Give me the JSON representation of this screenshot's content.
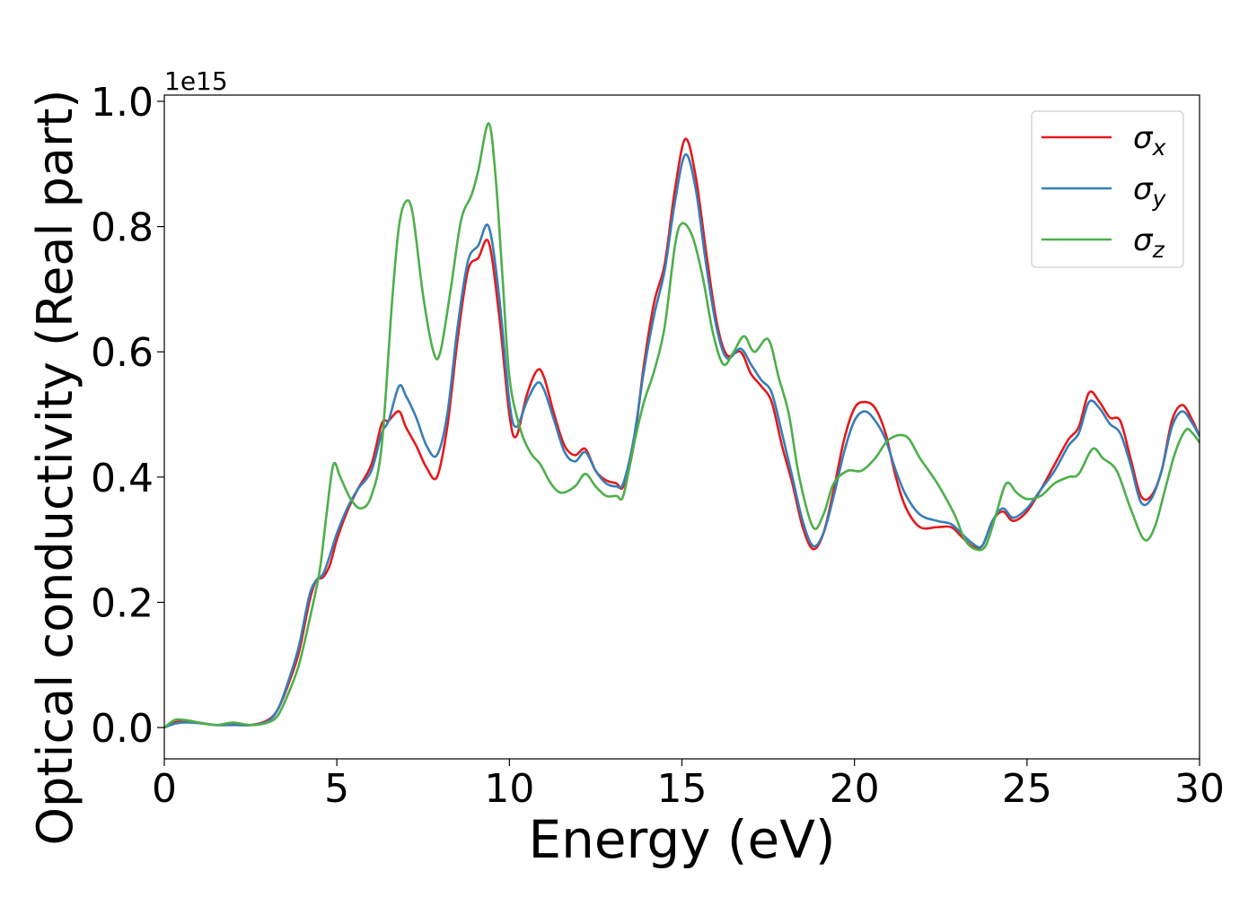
{
  "chart_data": {
    "type": "line",
    "title": "",
    "xlabel": "Energy (eV)",
    "ylabel": "Optical conductivity (Real part)",
    "offset_text": "1e15",
    "xlim": [
      0,
      30
    ],
    "ylim": [
      -0.05,
      1.01
    ],
    "xticks": [
      0,
      5,
      10,
      15,
      20,
      25,
      30
    ],
    "xtick_labels": [
      "0",
      "5",
      "10",
      "15",
      "20",
      "25",
      "30"
    ],
    "yticks": [
      0.0,
      0.2,
      0.4,
      0.6,
      0.8,
      1.0
    ],
    "ytick_labels": [
      "0.0",
      "0.2",
      "0.4",
      "0.6",
      "0.8",
      "1.0"
    ],
    "grid": false,
    "legend_position": "top-right",
    "series": [
      {
        "name": "σx",
        "legend_base": "σ",
        "legend_sub": "x",
        "color": "#e41a1c",
        "points": [
          [
            0,
            0.0
          ],
          [
            0.3,
            0.008
          ],
          [
            0.6,
            0.01
          ],
          [
            1.0,
            0.008
          ],
          [
            1.5,
            0.004
          ],
          [
            2.0,
            0.006
          ],
          [
            2.5,
            0.004
          ],
          [
            3.0,
            0.012
          ],
          [
            3.3,
            0.03
          ],
          [
            3.6,
            0.07
          ],
          [
            3.9,
            0.12
          ],
          [
            4.2,
            0.2
          ],
          [
            4.4,
            0.235
          ],
          [
            4.6,
            0.24
          ],
          [
            4.8,
            0.26
          ],
          [
            5.0,
            0.3
          ],
          [
            5.3,
            0.345
          ],
          [
            5.6,
            0.38
          ],
          [
            6.0,
            0.42
          ],
          [
            6.3,
            0.485
          ],
          [
            6.5,
            0.49
          ],
          [
            6.8,
            0.505
          ],
          [
            7.0,
            0.48
          ],
          [
            7.3,
            0.45
          ],
          [
            7.6,
            0.415
          ],
          [
            7.9,
            0.4
          ],
          [
            8.2,
            0.48
          ],
          [
            8.5,
            0.62
          ],
          [
            8.8,
            0.73
          ],
          [
            9.1,
            0.75
          ],
          [
            9.4,
            0.775
          ],
          [
            9.7,
            0.66
          ],
          [
            10.0,
            0.5
          ],
          [
            10.2,
            0.465
          ],
          [
            10.5,
            0.53
          ],
          [
            10.8,
            0.57
          ],
          [
            11.0,
            0.56
          ],
          [
            11.3,
            0.5
          ],
          [
            11.6,
            0.45
          ],
          [
            11.9,
            0.435
          ],
          [
            12.2,
            0.445
          ],
          [
            12.5,
            0.41
          ],
          [
            12.8,
            0.395
          ],
          [
            13.1,
            0.39
          ],
          [
            13.3,
            0.385
          ],
          [
            13.6,
            0.45
          ],
          [
            13.9,
            0.58
          ],
          [
            14.2,
            0.68
          ],
          [
            14.5,
            0.74
          ],
          [
            14.8,
            0.86
          ],
          [
            15.1,
            0.94
          ],
          [
            15.4,
            0.88
          ],
          [
            15.7,
            0.76
          ],
          [
            16.0,
            0.65
          ],
          [
            16.3,
            0.595
          ],
          [
            16.7,
            0.6
          ],
          [
            17.0,
            0.565
          ],
          [
            17.3,
            0.545
          ],
          [
            17.6,
            0.52
          ],
          [
            17.9,
            0.45
          ],
          [
            18.2,
            0.39
          ],
          [
            18.5,
            0.32
          ],
          [
            18.8,
            0.285
          ],
          [
            19.1,
            0.31
          ],
          [
            19.4,
            0.38
          ],
          [
            19.7,
            0.46
          ],
          [
            20.0,
            0.51
          ],
          [
            20.3,
            0.52
          ],
          [
            20.6,
            0.51
          ],
          [
            20.9,
            0.47
          ],
          [
            21.2,
            0.4
          ],
          [
            21.5,
            0.35
          ],
          [
            21.9,
            0.32
          ],
          [
            22.4,
            0.32
          ],
          [
            22.8,
            0.32
          ],
          [
            23.1,
            0.305
          ],
          [
            23.4,
            0.29
          ],
          [
            23.7,
            0.29
          ],
          [
            24.0,
            0.33
          ],
          [
            24.3,
            0.345
          ],
          [
            24.6,
            0.33
          ],
          [
            25.0,
            0.345
          ],
          [
            25.4,
            0.38
          ],
          [
            25.8,
            0.42
          ],
          [
            26.2,
            0.46
          ],
          [
            26.5,
            0.48
          ],
          [
            26.8,
            0.535
          ],
          [
            27.1,
            0.52
          ],
          [
            27.4,
            0.495
          ],
          [
            27.7,
            0.49
          ],
          [
            28.0,
            0.43
          ],
          [
            28.3,
            0.37
          ],
          [
            28.6,
            0.37
          ],
          [
            28.9,
            0.41
          ],
          [
            29.2,
            0.49
          ],
          [
            29.5,
            0.515
          ],
          [
            29.8,
            0.49
          ],
          [
            30.0,
            0.465
          ]
        ]
      },
      {
        "name": "σy",
        "legend_base": "σ",
        "legend_sub": "y",
        "color": "#377eb8",
        "points": [
          [
            0,
            0.0
          ],
          [
            0.3,
            0.006
          ],
          [
            0.6,
            0.008
          ],
          [
            1.0,
            0.007
          ],
          [
            1.5,
            0.004
          ],
          [
            2.0,
            0.004
          ],
          [
            2.5,
            0.004
          ],
          [
            3.0,
            0.01
          ],
          [
            3.3,
            0.03
          ],
          [
            3.6,
            0.075
          ],
          [
            3.9,
            0.13
          ],
          [
            4.2,
            0.21
          ],
          [
            4.4,
            0.235
          ],
          [
            4.6,
            0.245
          ],
          [
            4.8,
            0.275
          ],
          [
            5.0,
            0.31
          ],
          [
            5.3,
            0.35
          ],
          [
            5.6,
            0.38
          ],
          [
            6.0,
            0.41
          ],
          [
            6.3,
            0.47
          ],
          [
            6.5,
            0.49
          ],
          [
            6.8,
            0.545
          ],
          [
            7.0,
            0.53
          ],
          [
            7.3,
            0.495
          ],
          [
            7.6,
            0.45
          ],
          [
            7.9,
            0.435
          ],
          [
            8.2,
            0.5
          ],
          [
            8.5,
            0.64
          ],
          [
            8.8,
            0.745
          ],
          [
            9.1,
            0.77
          ],
          [
            9.4,
            0.8
          ],
          [
            9.7,
            0.69
          ],
          [
            10.0,
            0.52
          ],
          [
            10.2,
            0.48
          ],
          [
            10.5,
            0.52
          ],
          [
            10.8,
            0.55
          ],
          [
            11.0,
            0.54
          ],
          [
            11.3,
            0.49
          ],
          [
            11.6,
            0.44
          ],
          [
            11.9,
            0.425
          ],
          [
            12.2,
            0.44
          ],
          [
            12.5,
            0.41
          ],
          [
            12.8,
            0.39
          ],
          [
            13.1,
            0.385
          ],
          [
            13.3,
            0.39
          ],
          [
            13.6,
            0.46
          ],
          [
            13.9,
            0.57
          ],
          [
            14.2,
            0.66
          ],
          [
            14.5,
            0.73
          ],
          [
            14.8,
            0.84
          ],
          [
            15.1,
            0.915
          ],
          [
            15.4,
            0.86
          ],
          [
            15.7,
            0.74
          ],
          [
            16.0,
            0.64
          ],
          [
            16.3,
            0.59
          ],
          [
            16.7,
            0.605
          ],
          [
            17.0,
            0.58
          ],
          [
            17.3,
            0.555
          ],
          [
            17.6,
            0.535
          ],
          [
            17.9,
            0.47
          ],
          [
            18.2,
            0.4
          ],
          [
            18.5,
            0.33
          ],
          [
            18.8,
            0.29
          ],
          [
            19.1,
            0.31
          ],
          [
            19.4,
            0.37
          ],
          [
            19.7,
            0.44
          ],
          [
            20.0,
            0.49
          ],
          [
            20.3,
            0.505
          ],
          [
            20.6,
            0.49
          ],
          [
            20.9,
            0.46
          ],
          [
            21.2,
            0.41
          ],
          [
            21.5,
            0.37
          ],
          [
            21.9,
            0.34
          ],
          [
            22.4,
            0.33
          ],
          [
            22.8,
            0.325
          ],
          [
            23.1,
            0.31
          ],
          [
            23.4,
            0.295
          ],
          [
            23.7,
            0.29
          ],
          [
            24.0,
            0.33
          ],
          [
            24.3,
            0.35
          ],
          [
            24.6,
            0.335
          ],
          [
            25.0,
            0.35
          ],
          [
            25.4,
            0.38
          ],
          [
            25.8,
            0.41
          ],
          [
            26.2,
            0.45
          ],
          [
            26.5,
            0.47
          ],
          [
            26.8,
            0.52
          ],
          [
            27.1,
            0.51
          ],
          [
            27.4,
            0.485
          ],
          [
            27.7,
            0.47
          ],
          [
            28.0,
            0.42
          ],
          [
            28.3,
            0.36
          ],
          [
            28.6,
            0.365
          ],
          [
            28.9,
            0.41
          ],
          [
            29.2,
            0.48
          ],
          [
            29.5,
            0.505
          ],
          [
            29.8,
            0.485
          ],
          [
            30.0,
            0.465
          ]
        ]
      },
      {
        "name": "σz",
        "legend_base": "σ",
        "legend_sub": "z",
        "color": "#4daf4a",
        "points": [
          [
            0,
            0.0
          ],
          [
            0.3,
            0.012
          ],
          [
            0.6,
            0.012
          ],
          [
            1.0,
            0.008
          ],
          [
            1.5,
            0.004
          ],
          [
            2.0,
            0.008
          ],
          [
            2.5,
            0.004
          ],
          [
            3.0,
            0.008
          ],
          [
            3.3,
            0.02
          ],
          [
            3.6,
            0.055
          ],
          [
            3.9,
            0.1
          ],
          [
            4.2,
            0.17
          ],
          [
            4.5,
            0.25
          ],
          [
            4.7,
            0.34
          ],
          [
            4.9,
            0.42
          ],
          [
            5.1,
            0.4
          ],
          [
            5.4,
            0.365
          ],
          [
            5.7,
            0.35
          ],
          [
            6.0,
            0.37
          ],
          [
            6.3,
            0.45
          ],
          [
            6.6,
            0.68
          ],
          [
            6.8,
            0.8
          ],
          [
            7.0,
            0.84
          ],
          [
            7.2,
            0.82
          ],
          [
            7.5,
            0.69
          ],
          [
            7.8,
            0.6
          ],
          [
            8.0,
            0.6
          ],
          [
            8.3,
            0.7
          ],
          [
            8.6,
            0.81
          ],
          [
            8.9,
            0.85
          ],
          [
            9.1,
            0.89
          ],
          [
            9.4,
            0.965
          ],
          [
            9.6,
            0.88
          ],
          [
            9.8,
            0.72
          ],
          [
            10.0,
            0.56
          ],
          [
            10.3,
            0.48
          ],
          [
            10.6,
            0.44
          ],
          [
            10.9,
            0.42
          ],
          [
            11.2,
            0.39
          ],
          [
            11.5,
            0.375
          ],
          [
            11.9,
            0.385
          ],
          [
            12.2,
            0.405
          ],
          [
            12.5,
            0.385
          ],
          [
            12.8,
            0.37
          ],
          [
            13.1,
            0.37
          ],
          [
            13.3,
            0.37
          ],
          [
            13.6,
            0.45
          ],
          [
            13.9,
            0.52
          ],
          [
            14.2,
            0.57
          ],
          [
            14.5,
            0.64
          ],
          [
            14.8,
            0.77
          ],
          [
            15.0,
            0.805
          ],
          [
            15.3,
            0.785
          ],
          [
            15.6,
            0.72
          ],
          [
            15.9,
            0.63
          ],
          [
            16.2,
            0.58
          ],
          [
            16.5,
            0.6
          ],
          [
            16.8,
            0.625
          ],
          [
            17.1,
            0.6
          ],
          [
            17.5,
            0.62
          ],
          [
            17.8,
            0.56
          ],
          [
            18.1,
            0.5
          ],
          [
            18.4,
            0.4
          ],
          [
            18.8,
            0.32
          ],
          [
            19.1,
            0.34
          ],
          [
            19.4,
            0.39
          ],
          [
            19.8,
            0.41
          ],
          [
            20.2,
            0.41
          ],
          [
            20.6,
            0.43
          ],
          [
            21.0,
            0.46
          ],
          [
            21.5,
            0.465
          ],
          [
            21.9,
            0.43
          ],
          [
            22.4,
            0.39
          ],
          [
            22.9,
            0.34
          ],
          [
            23.2,
            0.3
          ],
          [
            23.5,
            0.285
          ],
          [
            23.8,
            0.29
          ],
          [
            24.1,
            0.34
          ],
          [
            24.4,
            0.39
          ],
          [
            24.7,
            0.375
          ],
          [
            25.0,
            0.365
          ],
          [
            25.4,
            0.37
          ],
          [
            25.8,
            0.39
          ],
          [
            26.2,
            0.4
          ],
          [
            26.5,
            0.405
          ],
          [
            26.9,
            0.445
          ],
          [
            27.2,
            0.43
          ],
          [
            27.6,
            0.41
          ],
          [
            28.0,
            0.35
          ],
          [
            28.4,
            0.3
          ],
          [
            28.7,
            0.32
          ],
          [
            29.0,
            0.38
          ],
          [
            29.3,
            0.44
          ],
          [
            29.6,
            0.475
          ],
          [
            29.8,
            0.47
          ],
          [
            30.0,
            0.455
          ]
        ]
      }
    ]
  }
}
